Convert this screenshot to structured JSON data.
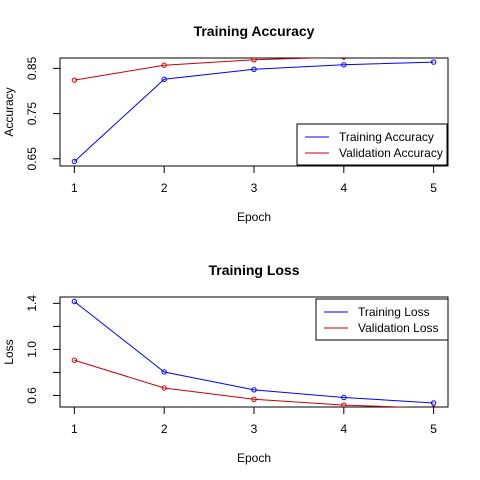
{
  "chart_data": [
    {
      "type": "line",
      "title": "Training Accuracy",
      "xlabel": "Epoch",
      "ylabel": "Accuracy",
      "x": [
        1,
        2,
        3,
        4,
        5
      ],
      "xticks": [
        1,
        2,
        3,
        4,
        5
      ],
      "yticks": [
        0.65,
        0.75,
        0.85
      ],
      "ytick_labels": [
        "0.65",
        "0.75",
        "0.85"
      ],
      "ylim": [
        0.634,
        0.873
      ],
      "grid": false,
      "legend_position": "bottom-right",
      "series": [
        {
          "name": "Training Accuracy",
          "color": "#0000ff",
          "values": [
            0.644,
            0.826,
            0.848,
            0.858,
            0.864
          ]
        },
        {
          "name": "Validation Accuracy",
          "color": "#cc0000",
          "values": [
            0.824,
            0.857,
            0.869,
            0.875,
            0.878
          ]
        }
      ]
    },
    {
      "type": "line",
      "title": "Training Loss",
      "xlabel": "Epoch",
      "ylabel": "Loss",
      "x": [
        1,
        2,
        3,
        4,
        5
      ],
      "xticks": [
        1,
        2,
        3,
        4,
        5
      ],
      "yticks": [
        0.6,
        0.8,
        1.0,
        1.2,
        1.4
      ],
      "ytick_labels": [
        "0.6",
        "",
        "1.0",
        "",
        "1.4"
      ],
      "ylim": [
        0.5,
        1.455
      ],
      "grid": false,
      "legend_position": "top-right",
      "series": [
        {
          "name": "Training Loss",
          "color": "#0000ff",
          "values": [
            1.416,
            0.804,
            0.649,
            0.583,
            0.535
          ]
        },
        {
          "name": "Validation Loss",
          "color": "#cc0000",
          "values": [
            0.906,
            0.665,
            0.567,
            0.516,
            0.49
          ]
        }
      ]
    }
  ]
}
